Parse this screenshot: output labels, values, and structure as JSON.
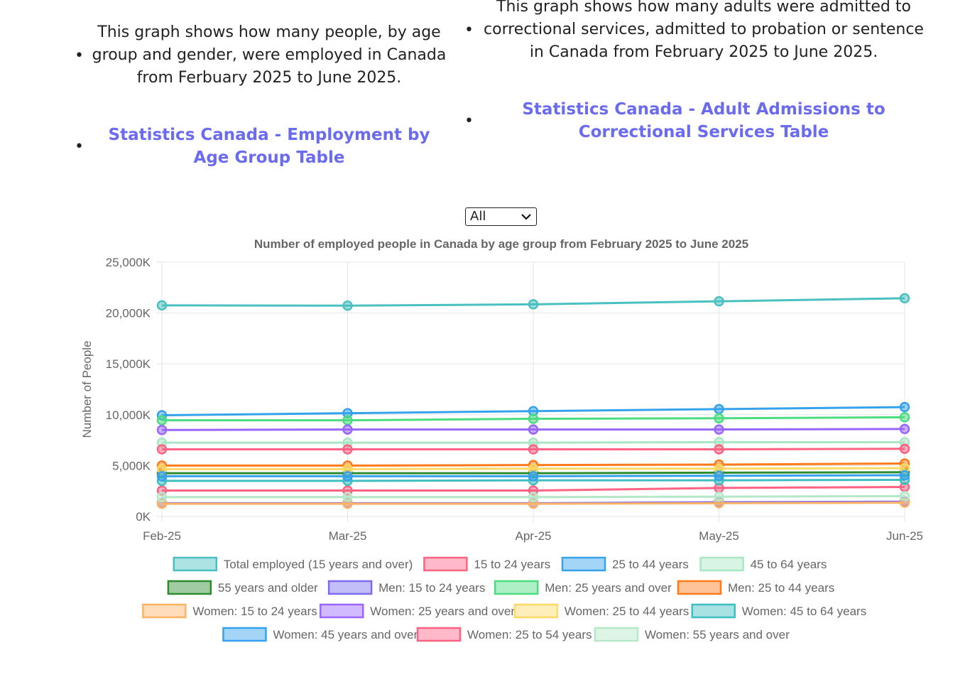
{
  "left": {
    "description": "This graph shows how many people, by age group and gender, were employed in Canada from Ferbuary 2025 to June 2025.",
    "link_label": "Statistics Canada - Employment by Age Group Table"
  },
  "right": {
    "description": "This graph shows how many adults were admitted to correctional services, admitted to probation or sentence in Canada from February 2025 to June 2025.",
    "link_label": "Statistics Canada - Adult Admissions to Correctional Services Table"
  },
  "filter": {
    "selected": "All",
    "chevron": "chevron-down-icon"
  },
  "chart_data": {
    "type": "line",
    "title": "Number of employed people in Canada by age group from February 2025 to June 2025",
    "xlabel": "",
    "ylabel": "Number of People",
    "categories": [
      "Feb-25",
      "Mar-25",
      "Apr-25",
      "May-25",
      "Jun-25"
    ],
    "ylim": [
      0,
      25000
    ],
    "yticks": [
      "0K",
      "5,000K",
      "10,000K",
      "15,000K",
      "20,000K",
      "25,000K"
    ],
    "ytick_values": [
      0,
      5000,
      10000,
      15000,
      20000,
      25000
    ],
    "grid": true,
    "legend_position": "bottom",
    "series": [
      {
        "name": "Total employed (15 years and over)",
        "color": "#4bc0c0",
        "values": [
          20750,
          20720,
          20850,
          21150,
          21450
        ]
      },
      {
        "name": "15 to 24 years",
        "color": "#ff6384",
        "values": [
          2550,
          2550,
          2550,
          2800,
          2900
        ]
      },
      {
        "name": "25 to 44 years",
        "color": "#36a2eb",
        "values": [
          9950,
          10150,
          10350,
          10550,
          10750
        ]
      },
      {
        "name": "45 to 64 years",
        "color": "#a8e6c4",
        "values": [
          7250,
          7250,
          7250,
          7300,
          7300
        ]
      },
      {
        "name": "55 years and older",
        "color": "#2e8b2e",
        "values": [
          4250,
          4250,
          4250,
          4300,
          4350
        ]
      },
      {
        "name": "Men: 15 to 24 years",
        "color": "#7b6cf0",
        "values": [
          1300,
          1300,
          1300,
          1400,
          1450
        ]
      },
      {
        "name": "Men: 25 years and over",
        "color": "#4cdc80",
        "values": [
          9450,
          9450,
          9600,
          9650,
          9750
        ]
      },
      {
        "name": "Men: 25 to 44 years",
        "color": "#ff7a1a",
        "values": [
          5000,
          5000,
          5050,
          5100,
          5200
        ]
      },
      {
        "name": "Women: 15 to 24 years",
        "color": "#ffb366",
        "values": [
          1250,
          1250,
          1250,
          1300,
          1350
        ]
      },
      {
        "name": "Women: 25 years and over",
        "color": "#9966ff",
        "values": [
          8500,
          8550,
          8550,
          8550,
          8600
        ]
      },
      {
        "name": "Women: 25 to 44 years",
        "color": "#ffd966",
        "values": [
          4650,
          4650,
          4700,
          4700,
          4750
        ]
      },
      {
        "name": "Women: 45 to 64 years",
        "color": "#3fbfbf",
        "values": [
          3500,
          3500,
          3550,
          3550,
          3600
        ]
      },
      {
        "name": "Women: 45 years and over",
        "color": "#36a2eb",
        "values": [
          3950,
          3950,
          3950,
          4000,
          4050
        ]
      },
      {
        "name": "Women: 25 to 54 years",
        "color": "#ff6384",
        "values": [
          6600,
          6600,
          6600,
          6600,
          6650
        ]
      },
      {
        "name": "Women: 55 years and over",
        "color": "#b5e8c8",
        "values": [
          1900,
          1900,
          1900,
          1950,
          2000
        ]
      }
    ]
  }
}
